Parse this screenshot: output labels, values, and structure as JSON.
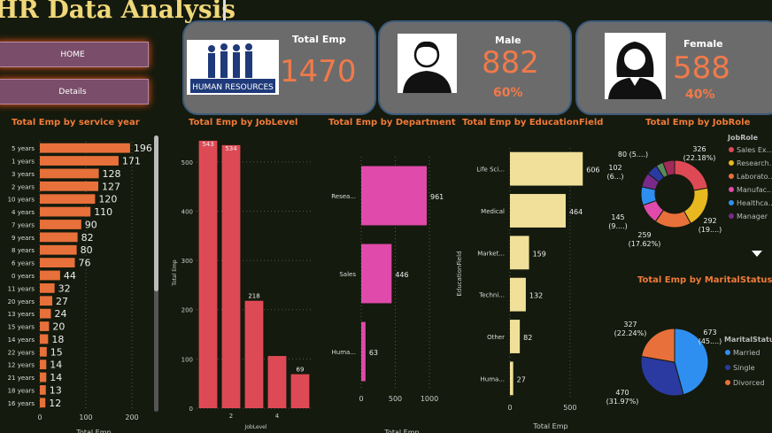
{
  "header": {
    "title": "HR Data Analysis"
  },
  "nav": {
    "home": "HOME",
    "details": "Details"
  },
  "cards": {
    "total": {
      "label": "Total Emp",
      "value": "1470",
      "logo_text": "HUMAN RESOURCES"
    },
    "male": {
      "label": "Male",
      "value": "882",
      "pct": "60%"
    },
    "female": {
      "label": "Female",
      "value": "588",
      "pct": "40%"
    }
  },
  "chart_titles": {
    "service": "Total Emp by service year",
    "joblevel": "Total Emp by JobLevel",
    "department": "Total Emp by Department",
    "education": "Total Emp by EducationField",
    "jobrole": "Total Emp by JobRole",
    "marital": "Total Emp by MaritalStatus"
  },
  "colors": {
    "service": "#e8703a",
    "joblevel": "#dd4a55",
    "department": "#e04aaa",
    "education": "#f0e09a"
  },
  "chart_data": [
    {
      "id": "service",
      "type": "bar",
      "orientation": "horizontal",
      "title": "Total Emp by service year",
      "xlabel": "Total Emp",
      "xlim": [
        0,
        200
      ],
      "xticks": [
        0,
        100,
        200
      ],
      "categories": [
        "5 years",
        "1 years",
        "3 years",
        "2 years",
        "10 years",
        "4 years",
        "7 years",
        "9 years",
        "8 years",
        "6 years",
        "0 years",
        "11 years",
        "20 years",
        "13 years",
        "15 years",
        "14 years",
        "22 years",
        "12 years",
        "21 years",
        "18 years",
        "16 years"
      ],
      "values": [
        196,
        171,
        128,
        127,
        120,
        110,
        90,
        82,
        80,
        76,
        44,
        32,
        27,
        24,
        20,
        18,
        15,
        14,
        14,
        13,
        12
      ]
    },
    {
      "id": "joblevel",
      "type": "bar",
      "orientation": "vertical",
      "title": "Total Emp by JobLevel",
      "xlabel": "JobLevel",
      "ylabel": "Total Emp",
      "ylim": [
        0,
        550
      ],
      "yticks": [
        0,
        100,
        200,
        300,
        400,
        500
      ],
      "xticks": [
        2,
        4
      ],
      "x": [
        1,
        2,
        3,
        4,
        5
      ],
      "values": [
        543,
        534,
        218,
        106,
        69
      ],
      "labels": [
        "543",
        "534",
        "218",
        "",
        "69"
      ]
    },
    {
      "id": "department",
      "type": "bar",
      "orientation": "horizontal",
      "title": "Total Emp by Department",
      "xlabel": "Total Emp",
      "xlim": [
        0,
        1000
      ],
      "xticks": [
        0,
        500,
        1000
      ],
      "categories": [
        "Resea...",
        "Sales",
        "Huma..."
      ],
      "values": [
        961,
        446,
        63
      ]
    },
    {
      "id": "education",
      "type": "bar",
      "orientation": "horizontal",
      "title": "Total Emp by EducationField",
      "xlabel": "Total Emp",
      "ylabel": "EducationField",
      "xlim": [
        0,
        700
      ],
      "xticks": [
        0,
        500
      ],
      "categories": [
        "Life Sci...",
        "Medical",
        "Market...",
        "Techni...",
        "Other",
        "Huma..."
      ],
      "values": [
        606,
        464,
        159,
        132,
        82,
        27
      ]
    },
    {
      "id": "jobrole",
      "type": "pie",
      "donut": true,
      "title": "Total Emp by JobRole",
      "legend_title": "JobRole",
      "legend": [
        "Sales Ex...",
        "Research...",
        "Laborato...",
        "Manufac...",
        "Healthca...",
        "Manager"
      ],
      "slices": [
        {
          "value": 326,
          "color": "#dd4a55",
          "label": "326",
          "sub": "(22.18%)"
        },
        {
          "value": 292,
          "color": "#e8b820",
          "label": "292",
          "sub": "(19....)"
        },
        {
          "value": 259,
          "color": "#e8703a",
          "label": "259",
          "sub": "(17.62%)"
        },
        {
          "value": 145,
          "color": "#e04aaa",
          "label": "145",
          "sub": "(9....)"
        },
        {
          "value": 131,
          "color": "#2f8ff0",
          "label": "",
          "sub": ""
        },
        {
          "value": 102,
          "color": "#7a2a8a",
          "label": "102",
          "sub": "(6...)"
        },
        {
          "value": 80,
          "color": "#2a3aa0",
          "label": "80 (5....)",
          "sub": ""
        },
        {
          "value": 52,
          "color": "#5a8a5a",
          "label": "",
          "sub": ""
        },
        {
          "value": 83,
          "color": "#a02a5a",
          "label": "",
          "sub": ""
        }
      ]
    },
    {
      "id": "marital",
      "type": "pie",
      "title": "Total Emp by MaritalStatus",
      "legend_title": "MaritalStatus",
      "legend": [
        "Married",
        "Single",
        "Divorced"
      ],
      "slices": [
        {
          "value": 673,
          "color": "#2f8ff0",
          "label": "673",
          "sub": "(45....)"
        },
        {
          "value": 470,
          "color": "#2a3aa0",
          "label": "470",
          "sub": "(31.97%)"
        },
        {
          "value": 327,
          "color": "#e8703a",
          "label": "327",
          "sub": "(22.24%)"
        }
      ]
    }
  ]
}
